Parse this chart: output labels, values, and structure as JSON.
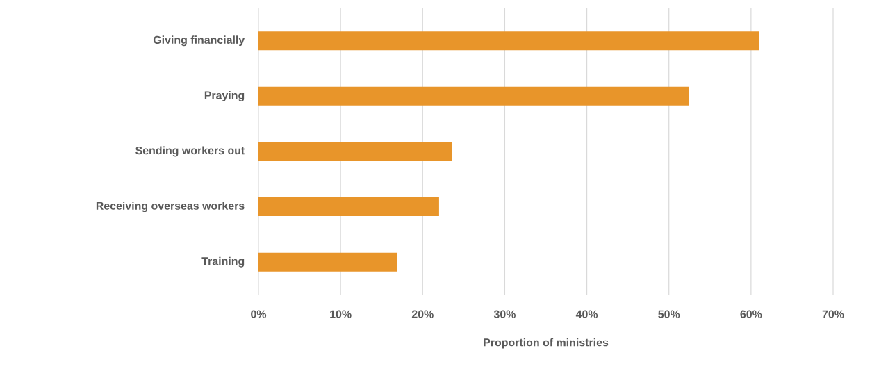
{
  "chart_data": {
    "type": "bar",
    "orientation": "horizontal",
    "xlabel": "Proportion of ministries",
    "categories": [
      "Giving financially",
      "Praying",
      "Sending workers out",
      "Receiving overseas workers",
      "Training"
    ],
    "values": [
      61,
      52.4,
      23.6,
      22,
      16.9
    ],
    "color": "#e8952a",
    "xlim": [
      0,
      70
    ],
    "xticks": [
      {
        "value": 0,
        "label": "0%"
      },
      {
        "value": 10,
        "label": "10%"
      },
      {
        "value": 20,
        "label": "20%"
      },
      {
        "value": 30,
        "label": "30%"
      },
      {
        "value": 40,
        "label": "40%"
      },
      {
        "value": 50,
        "label": "50%"
      },
      {
        "value": 60,
        "label": "60%"
      },
      {
        "value": 70,
        "label": "70%"
      }
    ],
    "grid": "x"
  }
}
